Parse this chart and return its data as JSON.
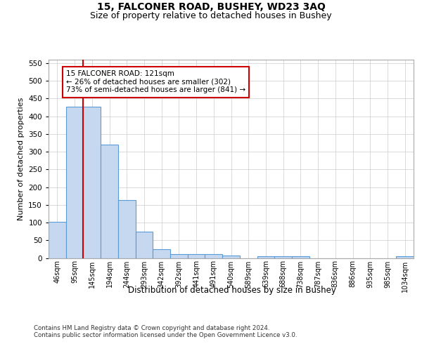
{
  "title1": "15, FALCONER ROAD, BUSHEY, WD23 3AQ",
  "title2": "Size of property relative to detached houses in Bushey",
  "xlabel": "Distribution of detached houses by size in Bushey",
  "ylabel": "Number of detached properties",
  "footer": "Contains HM Land Registry data © Crown copyright and database right 2024.\nContains public sector information licensed under the Open Government Licence v3.0.",
  "categories": [
    "46sqm",
    "95sqm",
    "145sqm",
    "194sqm",
    "244sqm",
    "293sqm",
    "342sqm",
    "392sqm",
    "441sqm",
    "491sqm",
    "540sqm",
    "589sqm",
    "639sqm",
    "688sqm",
    "738sqm",
    "787sqm",
    "836sqm",
    "886sqm",
    "935sqm",
    "985sqm",
    "1034sqm"
  ],
  "values": [
    102,
    428,
    428,
    320,
    163,
    75,
    25,
    11,
    11,
    11,
    6,
    0,
    5,
    5,
    5,
    0,
    0,
    0,
    0,
    0,
    5
  ],
  "bar_color": "#c5d8f0",
  "bar_edge_color": "#5b9bd5",
  "property_line_x": 1.5,
  "annotation_title": "15 FALCONER ROAD: 121sqm",
  "annotation_line1": "← 26% of detached houses are smaller (302)",
  "annotation_line2": "73% of semi-detached houses are larger (841) →",
  "annotation_box_color": "#ffffff",
  "annotation_box_edge": "#cc0000",
  "property_line_color": "#cc0000",
  "ylim": [
    0,
    560
  ],
  "yticks": [
    0,
    50,
    100,
    150,
    200,
    250,
    300,
    350,
    400,
    450,
    500,
    550
  ],
  "background_color": "#ffffff",
  "grid_color": "#cccccc"
}
